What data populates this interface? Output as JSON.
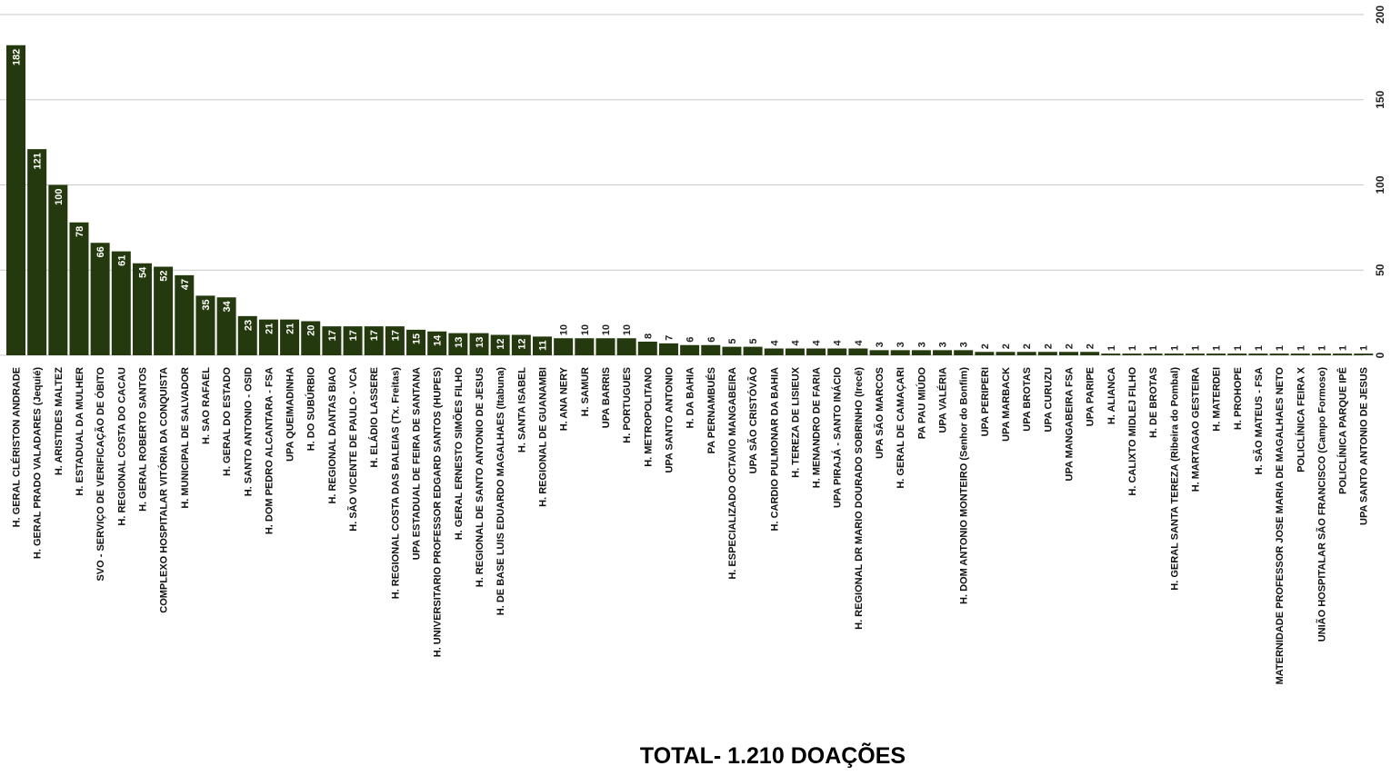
{
  "chart_data": {
    "type": "bar",
    "categories": [
      "H. GERAL CLÉRISTON ANDRADE",
      "H. GERAL PRADO VALADARES (Jequié)",
      "H. ARISTIDES MALTEZ",
      "H. ESTADUAL DA MULHER",
      "SVO - SERVIÇO DE VERIFICAÇÃO DE ÓBITO",
      "H. REGIONAL COSTA DO CACAU",
      "H. GERAL ROBERTO SANTOS",
      "COMPLEXO HOSPITALAR VITÓRIA DA CONQUISTA",
      "H. MUNICIPAL DE SALVADOR",
      "H. SAO RAFAEL",
      "H. GERAL DO ESTADO",
      "H. SANTO ANTONIO - OSID",
      "H. DOM PEDRO ALCANTARA - FSA",
      "UPA QUEIMADINHA",
      "H. DO SUBÚRBIO",
      "H. REGIONAL DANTAS BIAO",
      "H. SÃO VICENTE DE PAULO - VCA",
      "H. ELÁDIO LASSERE",
      "H. REGIONAL COSTA DAS BALEIAS (Tx. Freitas)",
      "UPA ESTADUAL DE FEIRA DE SANTANA",
      "H. UNIVERSITARIO PROFESSOR EDGARD SANTOS (HUPES)",
      "H. GERAL ERNESTO SIMÕES FILHO",
      "H. REGIONAL DE SANTO ANTONIO DE JESUS",
      "H. DE BASE LUIS EDUARDO MAGALHAES (Itabuna)",
      "H. SANTA ISABEL",
      "H. REGIONAL DE GUANAMBI",
      "H. ANA NERY",
      "H. SAMUR",
      "UPA BARRIS",
      "H. PORTUGUES",
      "H. METROPOLITANO",
      "UPA SANTO ANTONIO",
      "H. DA BAHIA",
      "PA PERNAMBUÉS",
      "H. ESPECIALIZADO OCTAVIO MANGABEIRA",
      "UPA SÃO CRISTÓVÃO",
      "H. CARDIO PULMONAR DA BAHIA",
      "H. TEREZA DE LISIEUX",
      "H. MENANDRO DE FARIA",
      "UPA PIRAJÁ - SANTO INÁCIO",
      "H. REGIONAL DR MARIO DOURADO SOBRINHO (Irecê)",
      "UPA SÃO MARCOS",
      "H. GERAL DE CAMAÇARI",
      "PA PAU MIÚDO",
      "UPA VALÉRIA",
      "H. DOM ANTONIO MONTEIRO (Senhor do Bonfim)",
      "UPA PERIPERI",
      "UPA MARBACK",
      "UPA BROTAS",
      "UPA CURUZU",
      "UPA MANGABEIRA FSA",
      "UPA PARIPE",
      "H. ALIANCA",
      "H. CALIXTO MIDLEJ FILHO",
      "H. DE BROTAS",
      "H. GERAL SANTA TEREZA (Ribeira do Pombal)",
      "H. MARTAGAO GESTEIRA",
      "H. MATERDEI",
      "H. PROHOPE",
      "H. SÃO MATEUS - FSA",
      "MATERNIDADE PROFESSOR JOSE MARIA DE MAGALHAES NETO",
      "POLICLÍNICA FEIRA X",
      "UNIÃO HOSPITALAR SÃO FRANCISCO (Campo Formoso)",
      "POLICLÍNICA PARQUE IPÊ",
      "UPA SANTO ANTONIO DE JESUS"
    ],
    "values": [
      182,
      121,
      100,
      78,
      66,
      61,
      54,
      52,
      47,
      35,
      34,
      23,
      21,
      21,
      20,
      17,
      17,
      17,
      17,
      15,
      14,
      13,
      13,
      12,
      12,
      11,
      10,
      10,
      10,
      10,
      8,
      7,
      6,
      6,
      5,
      5,
      4,
      4,
      4,
      4,
      4,
      3,
      3,
      3,
      3,
      3,
      2,
      2,
      2,
      2,
      2,
      2,
      1,
      1,
      1,
      1,
      1,
      1,
      1,
      1,
      1,
      1,
      1,
      1,
      1
    ],
    "ylim": [
      0,
      200
    ],
    "yticks": [
      0,
      50,
      100,
      150,
      200
    ],
    "grid": true,
    "bar_color": "#243a0e",
    "grid_color": "#c8c8c8",
    "total_text": "TOTAL- 1.210 DOAÇÕES"
  }
}
